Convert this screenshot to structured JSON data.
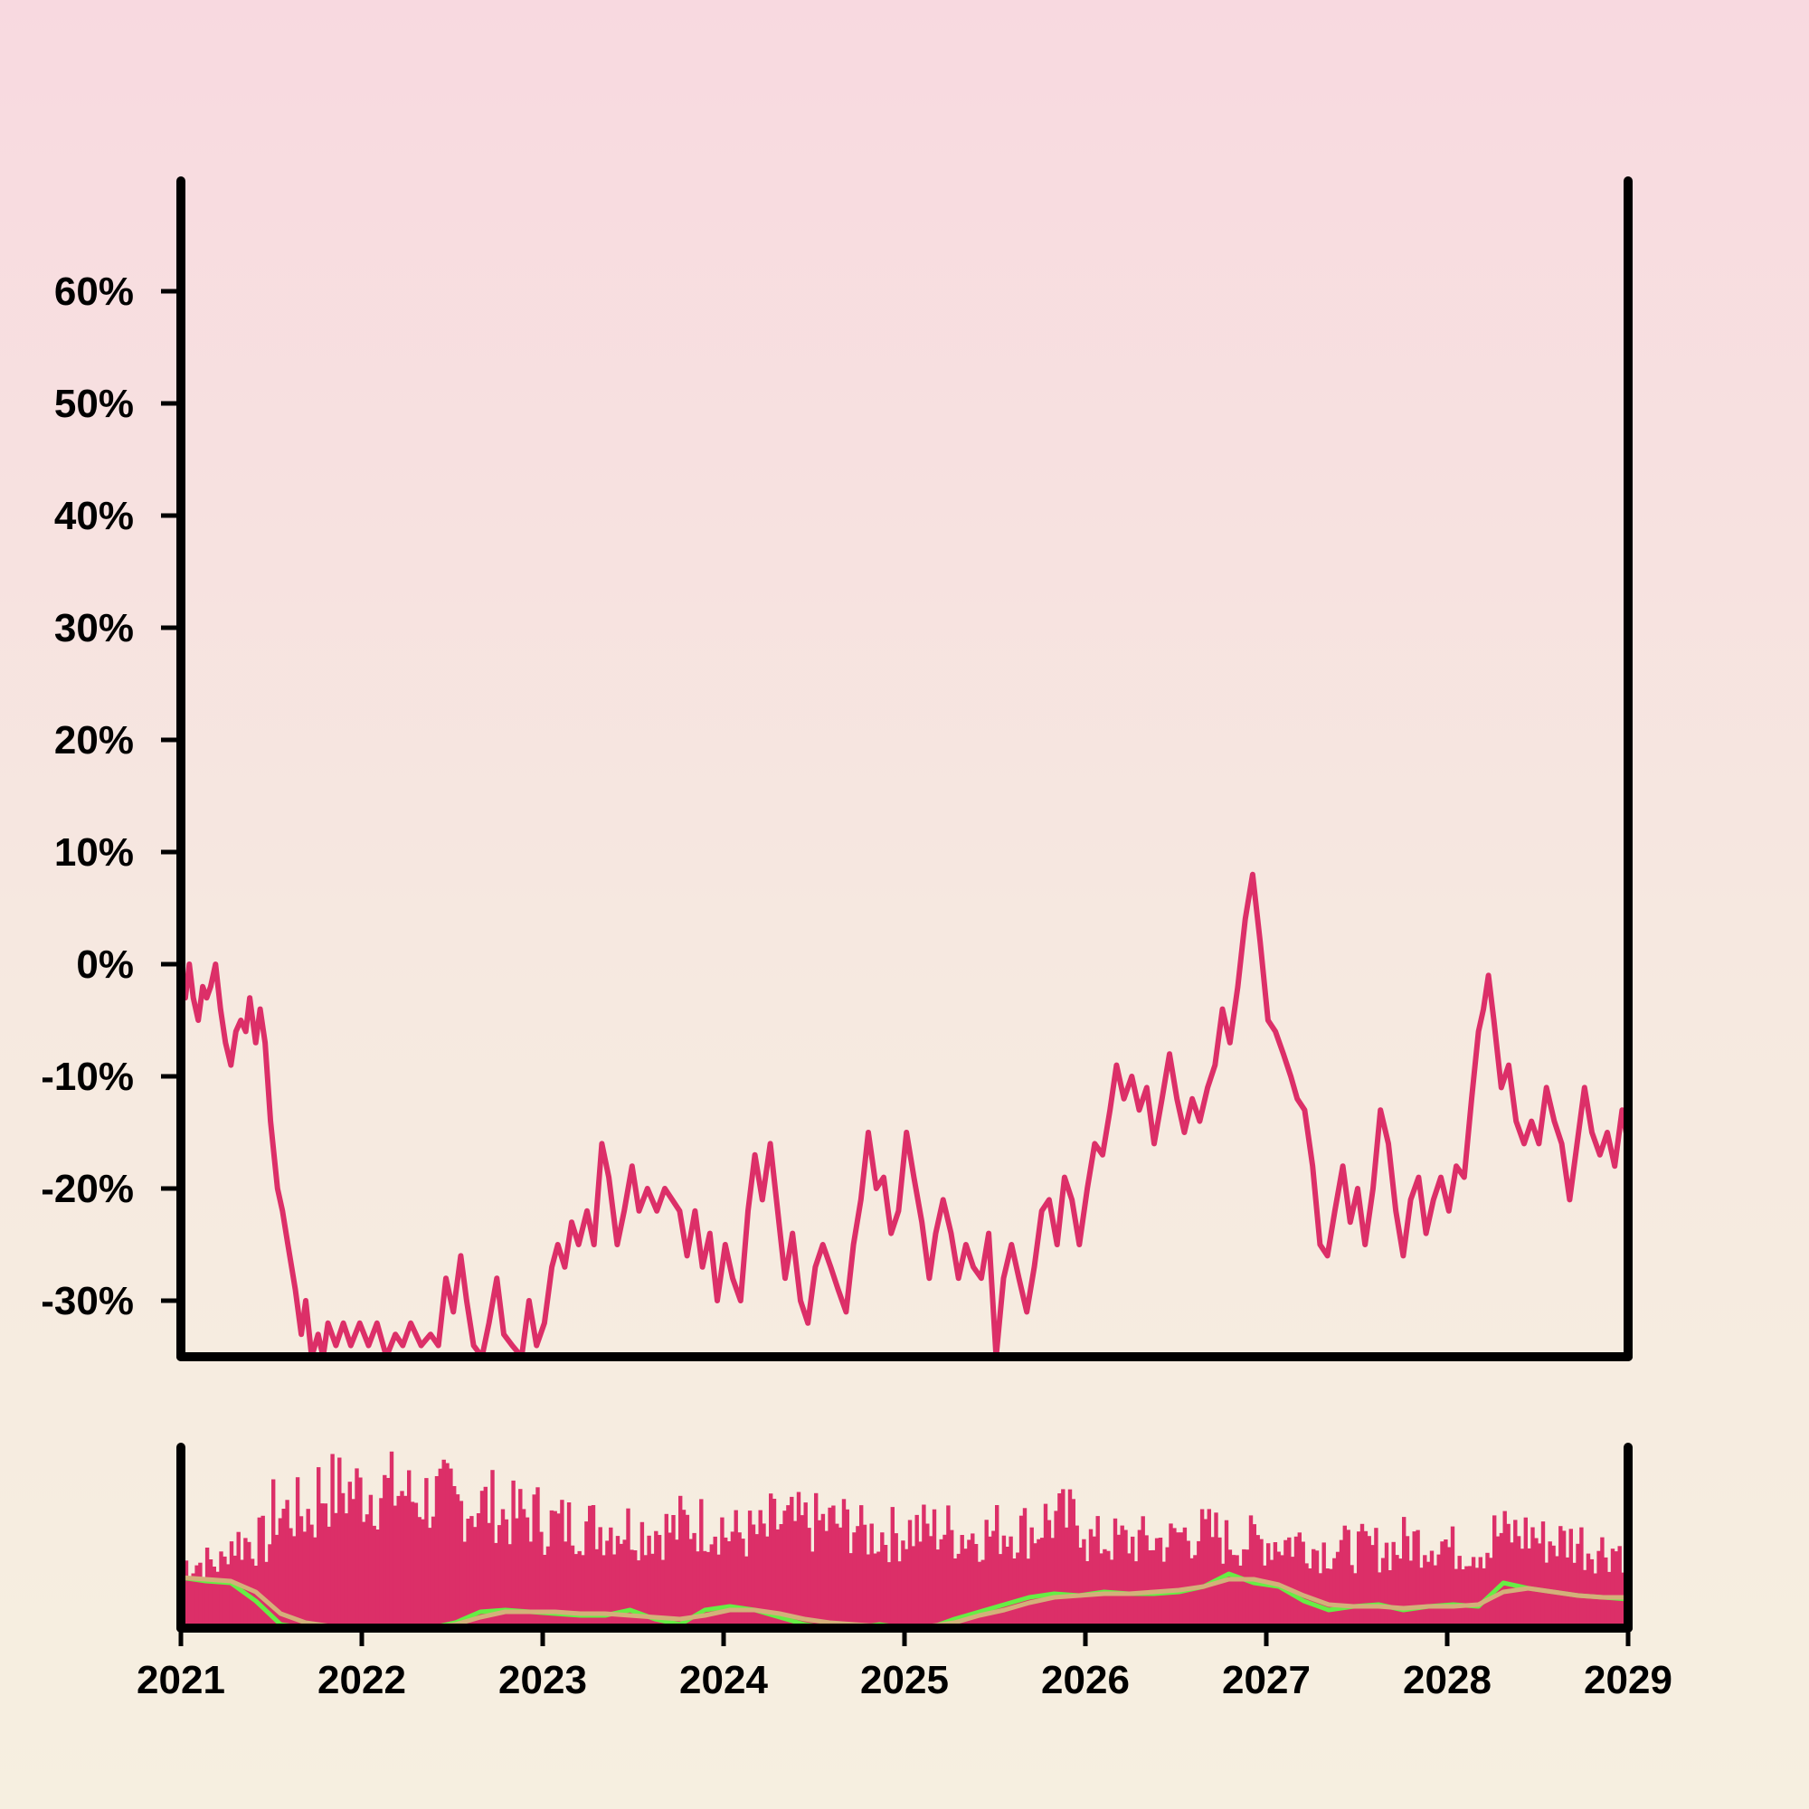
{
  "chart_data": [
    {
      "type": "line",
      "title": "",
      "xlabel": "",
      "ylabel": "",
      "x_range": [
        "2021-01-01",
        "2029-01-01"
      ],
      "ylim": [
        -35,
        65
      ],
      "y_ticks": [
        -30,
        -20,
        -10,
        0,
        10,
        20,
        30,
        40,
        50,
        60
      ],
      "y_tick_labels": [
        "-30%",
        "-20%",
        "-10%",
        "0%",
        "10%",
        "20%",
        "30%",
        "40%",
        "50%",
        "60%"
      ],
      "x_tick_labels": [
        "2021",
        "2022",
        "2023",
        "2024",
        "2025",
        "2026",
        "2027",
        "2028",
        "2029"
      ],
      "grid": false,
      "series": [
        {
          "color": "#dc2f68",
          "points": [
            [
              "2021-01-01",
              0
            ],
            [
              "2021-01-10",
              -3
            ],
            [
              "2021-01-18",
              0
            ],
            [
              "2021-01-26",
              -3
            ],
            [
              "2021-02-05",
              -5
            ],
            [
              "2021-02-14",
              -2
            ],
            [
              "2021-02-22",
              -3
            ],
            [
              "2021-03-02",
              -2
            ],
            [
              "2021-03-12",
              0
            ],
            [
              "2021-03-22",
              -4
            ],
            [
              "2021-04-01",
              -7
            ],
            [
              "2021-04-12",
              -9
            ],
            [
              "2021-04-22",
              -6
            ],
            [
              "2021-05-02",
              -5
            ],
            [
              "2021-05-12",
              -6
            ],
            [
              "2021-05-20",
              -3
            ],
            [
              "2021-06-01",
              -7
            ],
            [
              "2021-06-10",
              -4
            ],
            [
              "2021-06-20",
              -7
            ],
            [
              "2021-07-01",
              -14
            ],
            [
              "2021-07-15",
              -20
            ],
            [
              "2021-07-25",
              -22
            ],
            [
              "2021-08-05",
              -25
            ],
            [
              "2021-08-20",
              -29
            ],
            [
              "2021-09-01",
              -33
            ],
            [
              "2021-09-10",
              -30
            ],
            [
              "2021-09-22",
              -35
            ],
            [
              "2021-10-05",
              -33
            ],
            [
              "2021-10-15",
              -35
            ],
            [
              "2021-10-25",
              -32
            ],
            [
              "2021-11-10",
              -34
            ],
            [
              "2021-11-25",
              -32
            ],
            [
              "2021-12-10",
              -34
            ],
            [
              "2021-12-28",
              -32
            ],
            [
              "2022-01-15",
              -34
            ],
            [
              "2022-02-01",
              -32
            ],
            [
              "2022-02-20",
              -35
            ],
            [
              "2022-03-10",
              -33
            ],
            [
              "2022-03-25",
              -34
            ],
            [
              "2022-04-10",
              -32
            ],
            [
              "2022-05-01",
              -34
            ],
            [
              "2022-05-20",
              -33
            ],
            [
              "2022-06-05",
              -34
            ],
            [
              "2022-06-20",
              -28
            ],
            [
              "2022-07-05",
              -31
            ],
            [
              "2022-07-20",
              -26
            ],
            [
              "2022-08-01",
              -30
            ],
            [
              "2022-08-15",
              -34
            ],
            [
              "2022-09-01",
              -35
            ],
            [
              "2022-09-15",
              -32
            ],
            [
              "2022-10-01",
              -28
            ],
            [
              "2022-10-15",
              -33
            ],
            [
              "2022-11-01",
              -34
            ],
            [
              "2022-11-20",
              -35
            ],
            [
              "2022-12-05",
              -30
            ],
            [
              "2022-12-20",
              -34
            ],
            [
              "2023-01-05",
              -32
            ],
            [
              "2023-01-20",
              -27
            ],
            [
              "2023-02-01",
              -25
            ],
            [
              "2023-02-15",
              -27
            ],
            [
              "2023-03-01",
              -23
            ],
            [
              "2023-03-15",
              -25
            ],
            [
              "2023-04-01",
              -22
            ],
            [
              "2023-04-15",
              -25
            ],
            [
              "2023-05-01",
              -16
            ],
            [
              "2023-05-15",
              -19
            ],
            [
              "2023-06-01",
              -25
            ],
            [
              "2023-06-15",
              -22
            ],
            [
              "2023-07-01",
              -18
            ],
            [
              "2023-07-15",
              -22
            ],
            [
              "2023-08-01",
              -20
            ],
            [
              "2023-08-20",
              -22
            ],
            [
              "2023-09-05",
              -20
            ],
            [
              "2023-09-20",
              -21
            ],
            [
              "2023-10-05",
              -22
            ],
            [
              "2023-10-20",
              -26
            ],
            [
              "2023-11-05",
              -22
            ],
            [
              "2023-11-20",
              -27
            ],
            [
              "2023-12-05",
              -24
            ],
            [
              "2023-12-20",
              -30
            ],
            [
              "2024-01-05",
              -25
            ],
            [
              "2024-01-20",
              -28
            ],
            [
              "2024-02-05",
              -30
            ],
            [
              "2024-02-20",
              -22
            ],
            [
              "2024-03-05",
              -17
            ],
            [
              "2024-03-20",
              -21
            ],
            [
              "2024-04-05",
              -16
            ],
            [
              "2024-04-20",
              -22
            ],
            [
              "2024-05-05",
              -28
            ],
            [
              "2024-05-20",
              -24
            ],
            [
              "2024-06-05",
              -30
            ],
            [
              "2024-06-20",
              -32
            ],
            [
              "2024-07-05",
              -27
            ],
            [
              "2024-07-20",
              -25
            ],
            [
              "2024-08-05",
              -27
            ],
            [
              "2024-08-20",
              -29
            ],
            [
              "2024-09-05",
              -31
            ],
            [
              "2024-09-20",
              -25
            ],
            [
              "2024-10-05",
              -21
            ],
            [
              "2024-10-20",
              -15
            ],
            [
              "2024-11-05",
              -20
            ],
            [
              "2024-11-20",
              -19
            ],
            [
              "2024-12-05",
              -24
            ],
            [
              "2024-12-20",
              -22
            ],
            [
              "2025-01-05",
              -15
            ],
            [
              "2025-01-20",
              -19
            ],
            [
              "2025-02-05",
              -23
            ],
            [
              "2025-02-20",
              -28
            ],
            [
              "2025-03-05",
              -24
            ],
            [
              "2025-03-20",
              -21
            ],
            [
              "2025-04-05",
              -24
            ],
            [
              "2025-04-20",
              -28
            ],
            [
              "2025-05-05",
              -25
            ],
            [
              "2025-05-20",
              -27
            ],
            [
              "2025-06-05",
              -28
            ],
            [
              "2025-06-20",
              -24
            ],
            [
              "2025-07-05",
              -35
            ],
            [
              "2025-07-20",
              -28
            ],
            [
              "2025-08-05",
              -25
            ],
            [
              "2025-08-20",
              -28
            ],
            [
              "2025-09-05",
              -31
            ],
            [
              "2025-09-20",
              -27
            ],
            [
              "2025-10-05",
              -22
            ],
            [
              "2025-10-20",
              -21
            ],
            [
              "2025-11-05",
              -25
            ],
            [
              "2025-11-20",
              -19
            ],
            [
              "2025-12-05",
              -21
            ],
            [
              "2025-12-20",
              -25
            ],
            [
              "2026-01-05",
              -20
            ],
            [
              "2026-01-20",
              -16
            ],
            [
              "2026-02-05",
              -17
            ],
            [
              "2026-02-20",
              -13
            ],
            [
              "2026-03-05",
              -9
            ],
            [
              "2026-03-20",
              -12
            ],
            [
              "2026-04-05",
              -10
            ],
            [
              "2026-04-20",
              -13
            ],
            [
              "2026-05-05",
              -11
            ],
            [
              "2026-05-20",
              -16
            ],
            [
              "2026-06-05",
              -12
            ],
            [
              "2026-06-20",
              -8
            ],
            [
              "2026-07-05",
              -12
            ],
            [
              "2026-07-20",
              -15
            ],
            [
              "2026-08-05",
              -12
            ],
            [
              "2026-08-20",
              -14
            ],
            [
              "2026-09-05",
              -11
            ],
            [
              "2026-09-20",
              -9
            ],
            [
              "2026-10-05",
              -4
            ],
            [
              "2026-10-20",
              -7
            ],
            [
              "2026-11-05",
              -2
            ],
            [
              "2026-11-20",
              4
            ],
            [
              "2026-12-05",
              8
            ],
            [
              "2026-12-20",
              2
            ],
            [
              "2027-01-05",
              -5
            ],
            [
              "2027-01-20",
              -6
            ],
            [
              "2027-02-05",
              -8
            ],
            [
              "2027-02-20",
              -10
            ],
            [
              "2027-03-05",
              -12
            ],
            [
              "2027-03-20",
              -13
            ],
            [
              "2027-04-05",
              -18
            ],
            [
              "2027-04-20",
              -25
            ],
            [
              "2027-05-05",
              -26
            ],
            [
              "2027-05-20",
              -22
            ],
            [
              "2027-06-05",
              -18
            ],
            [
              "2027-06-20",
              -23
            ],
            [
              "2027-07-05",
              -20
            ],
            [
              "2027-07-20",
              -25
            ],
            [
              "2027-08-05",
              -20
            ],
            [
              "2027-08-20",
              -13
            ],
            [
              "2027-09-05",
              -16
            ],
            [
              "2027-09-20",
              -22
            ],
            [
              "2027-10-05",
              -26
            ],
            [
              "2027-10-20",
              -21
            ],
            [
              "2027-11-05",
              -19
            ],
            [
              "2027-11-20",
              -24
            ],
            [
              "2027-12-05",
              -21
            ],
            [
              "2027-12-20",
              -19
            ],
            [
              "2028-01-05",
              -22
            ],
            [
              "2028-01-20",
              -18
            ],
            [
              "2028-02-05",
              -19
            ],
            [
              "2028-02-20",
              -12
            ],
            [
              "2028-03-05",
              -6
            ],
            [
              "2028-03-15",
              -4
            ],
            [
              "2028-03-25",
              -1
            ],
            [
              "2028-04-05",
              -5
            ],
            [
              "2028-04-20",
              -11
            ],
            [
              "2028-05-05",
              -9
            ],
            [
              "2028-05-20",
              -14
            ],
            [
              "2028-06-05",
              -16
            ],
            [
              "2028-06-20",
              -14
            ],
            [
              "2028-07-05",
              -16
            ],
            [
              "2028-07-20",
              -11
            ],
            [
              "2028-08-05",
              -14
            ],
            [
              "2028-08-20",
              -16
            ],
            [
              "2028-09-05",
              -21
            ],
            [
              "2028-09-20",
              -16
            ],
            [
              "2028-10-05",
              -11
            ],
            [
              "2028-10-20",
              -15
            ],
            [
              "2028-11-05",
              -17
            ],
            [
              "2028-11-20",
              -15
            ],
            [
              "2028-12-05",
              -18
            ],
            [
              "2028-12-20",
              -13
            ],
            [
              "2029-01-01",
              -16
            ]
          ]
        }
      ]
    },
    {
      "type": "bar",
      "title": "",
      "xlabel": "",
      "ylabel": "",
      "x_range": [
        "2021-01-01",
        "2029-01-01"
      ],
      "x_tick_labels": [
        "2021",
        "2022",
        "2023",
        "2024",
        "2025",
        "2026",
        "2027",
        "2028",
        "2029"
      ],
      "grid": false,
      "bar_color": "#dc2f68",
      "bars_level_by_quarter": [
        0.45,
        0.6,
        0.8,
        0.95,
        0.95,
        0.9,
        0.85,
        0.78,
        0.72,
        0.7,
        0.68,
        0.72,
        0.65,
        0.72,
        0.72,
        0.65,
        0.68,
        0.65,
        0.68,
        0.75,
        0.6,
        0.6,
        0.65,
        0.6,
        0.6,
        0.55,
        0.55,
        0.6,
        0.55,
        0.65,
        0.6,
        0.55
      ],
      "lines": [
        {
          "color": "#66ee44",
          "values": [
            0.28,
            0.26,
            0.25,
            0.15,
            0.02,
            0.0,
            0.0,
            0.0,
            0.0,
            0.01,
            0.0,
            0.03,
            0.09,
            0.1,
            0.09,
            0.08,
            0.07,
            0.07,
            0.1,
            0.05,
            0.02,
            0.1,
            0.12,
            0.1,
            0.06,
            0.02,
            0.0,
            0.0,
            0.02,
            0.0,
            0.0,
            0.05,
            0.09,
            0.13,
            0.17,
            0.19,
            0.18,
            0.2,
            0.19,
            0.19,
            0.2,
            0.23,
            0.3,
            0.25,
            0.23,
            0.15,
            0.1,
            0.12,
            0.13,
            0.1,
            0.12,
            0.13,
            0.12,
            0.25,
            0.22,
            0.2,
            0.18,
            0.17,
            0.16
          ]
        },
        {
          "color": "#d4b07a",
          "values": [
            0.28,
            0.27,
            0.26,
            0.2,
            0.08,
            0.03,
            0.01,
            0.0,
            0.0,
            0.0,
            0.0,
            0.02,
            0.06,
            0.09,
            0.09,
            0.09,
            0.08,
            0.08,
            0.07,
            0.06,
            0.05,
            0.07,
            0.1,
            0.1,
            0.08,
            0.05,
            0.03,
            0.02,
            0.01,
            0.01,
            0.01,
            0.03,
            0.07,
            0.1,
            0.14,
            0.17,
            0.18,
            0.19,
            0.19,
            0.2,
            0.21,
            0.23,
            0.27,
            0.27,
            0.24,
            0.18,
            0.13,
            0.12,
            0.12,
            0.11,
            0.12,
            0.12,
            0.13,
            0.2,
            0.22,
            0.2,
            0.18,
            0.17,
            0.17
          ]
        }
      ]
    }
  ]
}
